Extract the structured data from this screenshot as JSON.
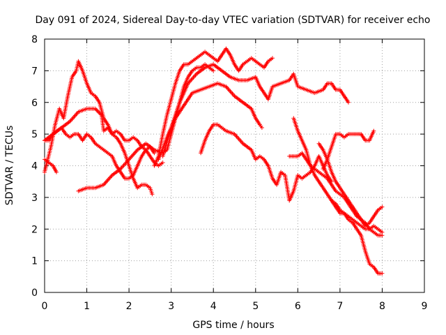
{
  "chart_data": {
    "type": "scatter",
    "title": "Day 091 of 2024, Sidereal Day-to-day VTEC variation (SDTVAR) for receiver echo",
    "xlabel": "GPS time / hours",
    "ylabel": "SDTVAR / TECUs",
    "xlim": [
      0,
      9
    ],
    "ylim": [
      0,
      8
    ],
    "xticks": [
      "0",
      "1",
      "2",
      "3",
      "4",
      "5",
      "6",
      "7",
      "8",
      "9"
    ],
    "yticks": [
      "0",
      "1",
      "2",
      "3",
      "4",
      "5",
      "6",
      "7",
      "8"
    ],
    "grid": true,
    "marker": "+",
    "color": "#ff0000",
    "series": [
      {
        "x": [
          0.0,
          0.15,
          0.25,
          0.35,
          0.45,
          0.55,
          0.65,
          0.75,
          0.8,
          0.9,
          1.0,
          1.1,
          1.2,
          1.3,
          1.4,
          1.5,
          1.6,
          1.7,
          1.8,
          1.9,
          2.0,
          2.1,
          2.2,
          2.3,
          2.4,
          2.5,
          2.55
        ],
        "y": [
          3.8,
          4.6,
          5.3,
          5.8,
          5.5,
          6.2,
          6.8,
          7.0,
          7.3,
          7.0,
          6.6,
          6.3,
          6.2,
          6.0,
          5.5,
          5.3,
          5.0,
          4.9,
          4.7,
          4.4,
          4.0,
          3.6,
          3.3,
          3.4,
          3.4,
          3.3,
          3.1
        ]
      },
      {
        "x": [
          0.0,
          0.2,
          0.4,
          0.6,
          0.8,
          1.0,
          1.2,
          1.35,
          1.4,
          1.5,
          1.6,
          1.7,
          1.8,
          1.9,
          2.0,
          2.1,
          2.2,
          2.3,
          2.4,
          2.5,
          2.6,
          2.7,
          2.8
        ],
        "y": [
          4.8,
          5.0,
          5.2,
          5.4,
          5.7,
          5.8,
          5.8,
          5.6,
          5.1,
          5.2,
          5.0,
          5.1,
          5.0,
          4.8,
          4.8,
          4.9,
          4.8,
          4.6,
          4.5,
          4.3,
          4.1,
          4.0,
          4.1
        ]
      },
      {
        "x": [
          0.0,
          0.1,
          0.2,
          0.3,
          0.4,
          0.5,
          0.6,
          0.7,
          0.8,
          0.9,
          1.0,
          1.1,
          1.2,
          1.3,
          1.4,
          1.5,
          1.6,
          1.7,
          1.8,
          1.9,
          2.0,
          2.1,
          2.2,
          2.3,
          2.4,
          2.5,
          2.6
        ],
        "y": [
          4.8,
          4.8,
          5.0,
          5.1,
          5.2,
          5.0,
          4.9,
          5.0,
          5.0,
          4.8,
          5.0,
          4.9,
          4.7,
          4.6,
          4.5,
          4.4,
          4.3,
          4.0,
          3.8,
          3.6,
          3.6,
          3.7,
          4.0,
          4.3,
          4.5,
          4.6,
          4.4
        ]
      },
      {
        "x": [
          0.0,
          0.1,
          0.2,
          0.28
        ],
        "y": [
          4.2,
          4.1,
          4.0,
          3.8
        ]
      },
      {
        "x": [
          0.8,
          1.0,
          1.2,
          1.4,
          1.6,
          1.8,
          2.0,
          2.2,
          2.4,
          2.6,
          2.8,
          2.9,
          3.0,
          3.1,
          3.2,
          3.3,
          3.4,
          3.5,
          3.6,
          3.7,
          3.8,
          3.9,
          4.0
        ],
        "y": [
          3.2,
          3.3,
          3.3,
          3.4,
          3.7,
          3.9,
          4.2,
          4.5,
          4.7,
          4.5,
          4.4,
          4.5,
          5.0,
          5.5,
          6.0,
          6.5,
          6.8,
          7.0,
          7.1,
          7.1,
          7.2,
          7.1,
          7.0
        ]
      },
      {
        "x": [
          2.6,
          2.7,
          2.8,
          2.9,
          3.0,
          3.1,
          3.2,
          3.3,
          3.4,
          3.5,
          3.6,
          3.7,
          3.8,
          3.9,
          4.0,
          4.1,
          4.2,
          4.3,
          4.4,
          4.5,
          4.6,
          4.7,
          4.8,
          4.9,
          5.0,
          5.1,
          5.2,
          5.3,
          5.4
        ],
        "y": [
          4.0,
          4.3,
          5.0,
          5.6,
          6.1,
          6.6,
          7.0,
          7.2,
          7.2,
          7.3,
          7.4,
          7.5,
          7.6,
          7.5,
          7.4,
          7.3,
          7.5,
          7.7,
          7.5,
          7.2,
          7.0,
          7.2,
          7.3,
          7.4,
          7.3,
          7.2,
          7.1,
          7.3,
          7.4
        ]
      },
      {
        "x": [
          2.8,
          3.0,
          3.2,
          3.4,
          3.6,
          3.8,
          4.0,
          4.2,
          4.4,
          4.6,
          4.8,
          5.0,
          5.1,
          5.2,
          5.3,
          5.4,
          5.6,
          5.8,
          5.9,
          6.0,
          6.2,
          6.4,
          6.6,
          6.7,
          6.8,
          6.9,
          7.0,
          7.1,
          7.2
        ],
        "y": [
          4.3,
          5.2,
          6.0,
          6.6,
          6.9,
          7.1,
          7.2,
          7.0,
          6.8,
          6.7,
          6.7,
          6.8,
          6.5,
          6.3,
          6.1,
          6.5,
          6.6,
          6.7,
          6.9,
          6.5,
          6.4,
          6.3,
          6.4,
          6.6,
          6.6,
          6.4,
          6.4,
          6.2,
          6.0
        ]
      },
      {
        "x": [
          2.7,
          2.9,
          3.1,
          3.3,
          3.5,
          3.7,
          3.9,
          4.1,
          4.3,
          4.5,
          4.7,
          4.9,
          5.0,
          5.1,
          5.15
        ],
        "y": [
          4.2,
          4.9,
          5.5,
          5.9,
          6.3,
          6.4,
          6.5,
          6.6,
          6.5,
          6.2,
          6.0,
          5.8,
          5.5,
          5.3,
          5.2
        ]
      },
      {
        "x": [
          3.7,
          3.8,
          3.9,
          4.0,
          4.1,
          4.2,
          4.3,
          4.5,
          4.7,
          4.9,
          5.0,
          5.1,
          5.2,
          5.3,
          5.4,
          5.5,
          5.6,
          5.7,
          5.8,
          5.9,
          6.0,
          6.1,
          6.2,
          6.3,
          6.4,
          6.5,
          6.6,
          6.7,
          6.8
        ],
        "y": [
          4.4,
          4.8,
          5.1,
          5.3,
          5.3,
          5.2,
          5.1,
          5.0,
          4.7,
          4.5,
          4.2,
          4.3,
          4.2,
          4.0,
          3.6,
          3.4,
          3.8,
          3.7,
          2.9,
          3.2,
          3.7,
          3.6,
          3.7,
          3.8,
          4.0,
          4.3,
          4.0,
          3.7,
          3.5
        ]
      },
      {
        "x": [
          5.9,
          6.0,
          6.1,
          6.2,
          6.3,
          6.4,
          6.5,
          6.6,
          6.7,
          6.8,
          6.9,
          7.0,
          7.1,
          7.2,
          7.3,
          7.4,
          7.5,
          7.6,
          7.7,
          7.8,
          7.9,
          8.0
        ],
        "y": [
          5.5,
          5.1,
          4.8,
          4.5,
          4.0,
          3.9,
          3.8,
          3.7,
          3.6,
          3.4,
          3.2,
          3.1,
          3.0,
          2.8,
          2.6,
          2.4,
          2.3,
          2.2,
          2.0,
          1.9,
          1.8,
          1.8
        ]
      },
      {
        "x": [
          5.8,
          6.0,
          6.1,
          6.2,
          6.3,
          6.4,
          6.5,
          6.6,
          6.7,
          6.8,
          6.9,
          7.0,
          7.1,
          7.2,
          7.3,
          7.4,
          7.5,
          7.6,
          7.7,
          7.8,
          7.9,
          8.0
        ],
        "y": [
          4.3,
          4.3,
          4.4,
          4.2,
          4.0,
          3.7,
          3.5,
          3.3,
          3.1,
          2.9,
          2.7,
          2.5,
          2.5,
          2.4,
          2.3,
          2.2,
          2.1,
          2.0,
          2.0,
          2.1,
          2.0,
          1.9
        ]
      },
      {
        "x": [
          6.5,
          6.6,
          6.7,
          6.8,
          6.9,
          7.0,
          7.1,
          7.2,
          7.3,
          7.4,
          7.5,
          7.6,
          7.7,
          7.8,
          7.9,
          8.0
        ],
        "y": [
          4.7,
          4.5,
          4.2,
          3.8,
          3.5,
          3.3,
          3.1,
          2.9,
          2.7,
          2.5,
          2.3,
          2.1,
          2.2,
          2.4,
          2.6,
          2.7
        ]
      },
      {
        "x": [
          6.6,
          6.7,
          6.8,
          6.9,
          7.0,
          7.1,
          7.2,
          7.3,
          7.4,
          7.5,
          7.6,
          7.7,
          7.8
        ],
        "y": [
          3.9,
          4.2,
          4.6,
          5.0,
          5.0,
          4.9,
          5.0,
          5.0,
          5.0,
          5.0,
          4.8,
          4.8,
          5.1
        ]
      },
      {
        "x": [
          6.8,
          6.9,
          7.0,
          7.1,
          7.2,
          7.3,
          7.4,
          7.5,
          7.6,
          7.7,
          7.8,
          7.9,
          8.0
        ],
        "y": [
          2.9,
          2.8,
          2.6,
          2.5,
          2.3,
          2.2,
          2.0,
          1.8,
          1.3,
          0.9,
          0.8,
          0.6,
          0.6
        ]
      }
    ]
  }
}
